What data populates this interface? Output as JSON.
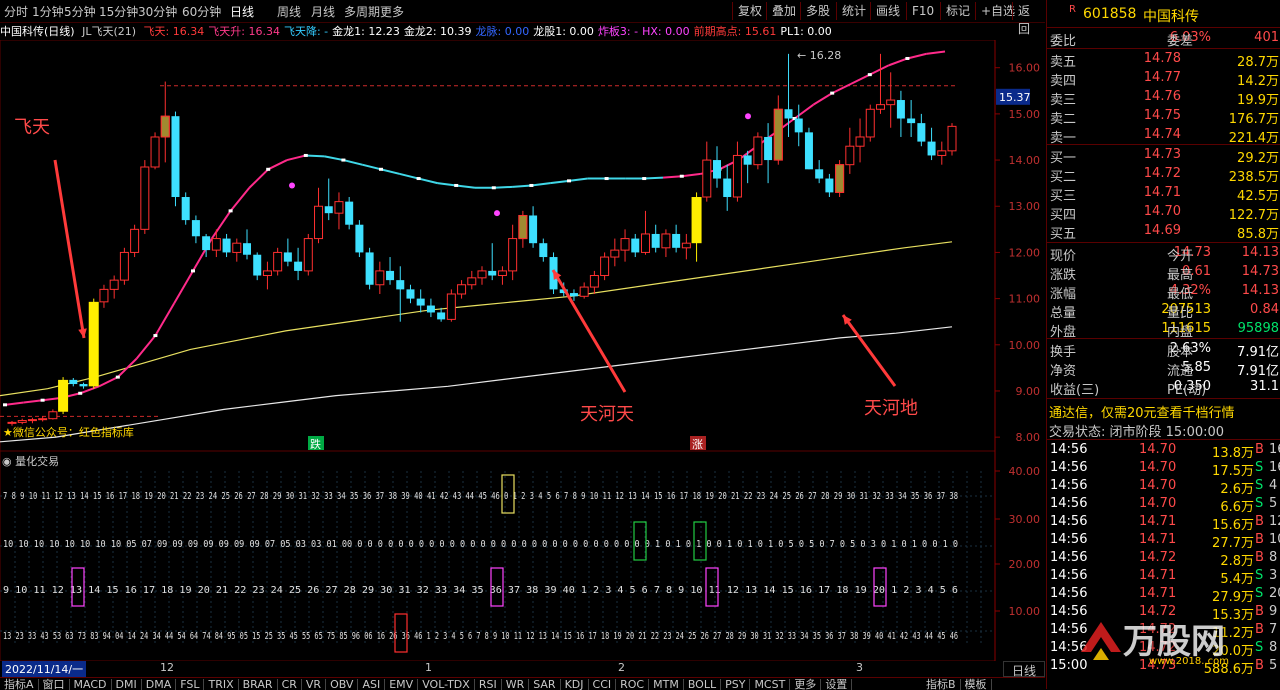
{
  "toolbar": {
    "periods": [
      "分时",
      "1分钟",
      "5分钟",
      "15分钟",
      "30分钟",
      "60分钟",
      "日线",
      "周线",
      "月线",
      "多周期",
      "更多"
    ],
    "active_period": "日线",
    "right_buttons": [
      "复权",
      "叠加",
      "多股",
      "统计",
      "画线",
      "F10",
      "标记",
      "+自选",
      "返回"
    ]
  },
  "infobar": {
    "stock": "中国科传(日线)",
    "indicator": "JL飞天(21)",
    "items": [
      {
        "label": "飞天:",
        "value": "16.34",
        "color": "#ff3a3a"
      },
      {
        "label": "飞天升:",
        "value": "16.34",
        "color": "#ff3a8a"
      },
      {
        "label": "飞天降:",
        "value": "-",
        "color": "#33ccff"
      },
      {
        "label": "金龙1:",
        "value": "12.23",
        "color": "#ffffff"
      },
      {
        "label": "金龙2:",
        "value": "10.39",
        "color": "#ffffff"
      },
      {
        "label": "龙脉:",
        "value": "0.00",
        "color": "#3366ff"
      },
      {
        "label": "龙股1:",
        "value": "0.00",
        "color": "#ffffff"
      },
      {
        "label": "炸板3:",
        "value": "-",
        "color": "#ff44ff"
      },
      {
        "label": "HX:",
        "value": "0.00",
        "color": "#ff44ff"
      },
      {
        "label": "前期高点:",
        "value": "15.61",
        "color": "#ff3a3a"
      },
      {
        "label": "PL1:",
        "value": "0.00",
        "color": "#ffffff"
      }
    ]
  },
  "chart_data": {
    "type": "candlestick",
    "ylim": [
      7.7,
      16.6
    ],
    "yticks": [
      "16.00",
      "15.00",
      "14.00",
      "13.00",
      "12.00",
      "11.00",
      "10.00",
      "9.00",
      "8.00"
    ],
    "current_price_label": "15.37",
    "peak_label": "16.28",
    "candles": [
      [
        8.3,
        8.35,
        8.25,
        8.32
      ],
      [
        8.32,
        8.4,
        8.28,
        8.36
      ],
      [
        8.36,
        8.42,
        8.3,
        8.38
      ],
      [
        8.38,
        8.45,
        8.34,
        8.4
      ],
      [
        8.4,
        8.6,
        8.38,
        8.55
      ],
      [
        8.55,
        9.3,
        8.5,
        9.24
      ],
      [
        9.24,
        9.28,
        9.1,
        9.15
      ],
      [
        9.15,
        9.18,
        9.05,
        9.1
      ],
      [
        9.1,
        11.0,
        9.05,
        10.93
      ],
      [
        10.93,
        11.3,
        10.8,
        11.2
      ],
      [
        11.2,
        11.5,
        11.0,
        11.4
      ],
      [
        11.4,
        12.1,
        11.3,
        12.0
      ],
      [
        12.0,
        12.6,
        11.9,
        12.5
      ],
      [
        12.5,
        14.0,
        12.4,
        13.85
      ],
      [
        13.85,
        14.6,
        13.8,
        14.5
      ],
      [
        14.5,
        15.7,
        13.95,
        14.95
      ],
      [
        14.95,
        15.05,
        13.0,
        13.2
      ],
      [
        13.2,
        13.3,
        12.6,
        12.7
      ],
      [
        12.7,
        12.8,
        12.2,
        12.35
      ],
      [
        12.35,
        12.4,
        11.9,
        12.05
      ],
      [
        12.05,
        12.5,
        11.9,
        12.3
      ],
      [
        12.3,
        12.4,
        11.9,
        12.0
      ],
      [
        12.0,
        12.3,
        11.8,
        12.2
      ],
      [
        12.2,
        12.5,
        11.85,
        11.95
      ],
      [
        11.95,
        12.0,
        11.4,
        11.5
      ],
      [
        11.5,
        11.8,
        11.2,
        11.6
      ],
      [
        11.6,
        12.1,
        11.5,
        12.0
      ],
      [
        12.0,
        12.3,
        11.7,
        11.8
      ],
      [
        11.8,
        12.1,
        11.4,
        11.6
      ],
      [
        11.6,
        12.4,
        11.5,
        12.3
      ],
      [
        12.3,
        13.4,
        12.2,
        13.0
      ],
      [
        13.0,
        13.6,
        12.7,
        12.85
      ],
      [
        12.85,
        13.3,
        12.5,
        13.1
      ],
      [
        13.1,
        13.2,
        12.5,
        12.6
      ],
      [
        12.6,
        12.7,
        11.9,
        12.0
      ],
      [
        12.0,
        12.1,
        11.2,
        11.3
      ],
      [
        11.3,
        11.8,
        11.1,
        11.6
      ],
      [
        11.6,
        11.9,
        11.3,
        11.4
      ],
      [
        11.4,
        11.7,
        10.5,
        11.2
      ],
      [
        11.2,
        11.3,
        10.9,
        11.0
      ],
      [
        11.0,
        11.2,
        10.7,
        10.85
      ],
      [
        10.85,
        11.0,
        10.6,
        10.7
      ],
      [
        10.7,
        10.8,
        10.5,
        10.55
      ],
      [
        10.55,
        11.2,
        10.5,
        11.1
      ],
      [
        11.1,
        11.4,
        11.0,
        11.3
      ],
      [
        11.3,
        11.6,
        11.2,
        11.45
      ],
      [
        11.45,
        11.7,
        11.3,
        11.6
      ],
      [
        11.6,
        12.2,
        11.4,
        11.5
      ],
      [
        11.5,
        11.7,
        11.3,
        11.6
      ],
      [
        11.6,
        12.6,
        11.4,
        12.3
      ],
      [
        12.3,
        12.9,
        12.1,
        12.8
      ],
      [
        12.8,
        13.0,
        12.1,
        12.2
      ],
      [
        12.2,
        12.3,
        11.8,
        11.9
      ],
      [
        11.9,
        12.0,
        11.1,
        11.2
      ],
      [
        11.2,
        11.35,
        11.05,
        11.12
      ],
      [
        11.12,
        11.2,
        10.95,
        11.05
      ],
      [
        11.05,
        11.35,
        11.0,
        11.25
      ],
      [
        11.25,
        11.6,
        11.1,
        11.5
      ],
      [
        11.5,
        12.0,
        11.4,
        11.9
      ],
      [
        11.9,
        12.3,
        11.7,
        12.05
      ],
      [
        12.05,
        12.5,
        11.8,
        12.3
      ],
      [
        12.3,
        12.4,
        11.9,
        12.0
      ],
      [
        12.0,
        12.9,
        11.95,
        12.4
      ],
      [
        12.4,
        12.6,
        12.0,
        12.1
      ],
      [
        12.1,
        12.5,
        11.9,
        12.4
      ],
      [
        12.4,
        12.6,
        12.0,
        12.1
      ],
      [
        12.1,
        12.4,
        11.85,
        12.2
      ],
      [
        12.2,
        13.3,
        11.8,
        13.2
      ],
      [
        13.2,
        14.4,
        13.1,
        14.0
      ],
      [
        14.0,
        14.3,
        13.4,
        13.6
      ],
      [
        13.6,
        13.9,
        12.9,
        13.2
      ],
      [
        13.2,
        14.4,
        13.1,
        14.1
      ],
      [
        14.1,
        14.2,
        13.5,
        13.9
      ],
      [
        13.9,
        14.6,
        13.8,
        14.5
      ],
      [
        14.5,
        14.8,
        13.5,
        14.0
      ],
      [
        14.0,
        15.4,
        13.9,
        15.1
      ],
      [
        15.1,
        16.3,
        14.5,
        14.9
      ],
      [
        14.9,
        15.2,
        14.3,
        14.6
      ],
      [
        14.6,
        14.7,
        13.8,
        13.8
      ],
      [
        13.8,
        14.0,
        13.5,
        13.6
      ],
      [
        13.6,
        13.7,
        13.2,
        13.3
      ],
      [
        13.3,
        14.0,
        13.2,
        13.9
      ],
      [
        13.9,
        14.7,
        13.7,
        14.3
      ],
      [
        14.3,
        14.9,
        13.95,
        14.5
      ],
      [
        14.5,
        15.2,
        14.4,
        15.1
      ],
      [
        15.1,
        16.3,
        15.0,
        15.2
      ],
      [
        15.2,
        15.9,
        14.7,
        15.3
      ],
      [
        15.3,
        15.5,
        14.5,
        14.9
      ],
      [
        14.9,
        15.3,
        14.5,
        14.8
      ],
      [
        14.8,
        15.0,
        14.3,
        14.4
      ],
      [
        14.4,
        14.7,
        14.0,
        14.1
      ],
      [
        14.1,
        14.4,
        13.9,
        14.2
      ],
      [
        14.2,
        14.8,
        14.1,
        14.73
      ]
    ],
    "ma_curve": [
      8.7,
      8.75,
      8.8,
      8.85,
      8.95,
      9.1,
      9.3,
      9.7,
      10.2,
      10.9,
      11.6,
      12.3,
      12.9,
      13.4,
      13.8,
      14.0,
      14.1,
      14.08,
      14.0,
      13.9,
      13.8,
      13.7,
      13.6,
      13.5,
      13.45,
      13.4,
      13.4,
      13.42,
      13.45,
      13.5,
      13.55,
      13.6,
      13.6,
      13.6,
      13.6,
      13.62,
      13.65,
      13.7,
      13.8,
      14.0,
      14.3,
      14.6,
      14.9,
      15.2,
      15.45,
      15.65,
      15.85,
      16.05,
      16.2,
      16.3,
      16.35
    ],
    "line_yellow": [
      8.9,
      9.05,
      9.3,
      9.6,
      9.9,
      10.1,
      10.3,
      10.45,
      10.6,
      10.75,
      10.85,
      10.95,
      11.05,
      11.2,
      11.35,
      11.5,
      11.65,
      11.8,
      11.95,
      12.1,
      12.23
    ],
    "line_white": [
      7.9,
      8.0,
      8.2,
      8.4,
      8.6,
      8.75,
      8.9,
      9.0,
      9.1,
      9.25,
      9.4,
      9.55,
      9.7,
      9.85,
      10.0,
      10.15,
      10.25,
      10.39
    ],
    "annotations": [
      "飞天",
      "天河天",
      "天河地"
    ],
    "side_markers": [
      "跌",
      "涨"
    ],
    "bottom_note": "★微信公众号：红色指标库"
  },
  "subchart": {
    "title": "量化交易",
    "yticks": [
      "40.00",
      "30.00",
      "20.00",
      "10.00"
    ],
    "rows": [
      "7 8 9 10 11 12 13 14 15 16 17 18 19 20 21 22 23 24 25 26 27 28 29 30 31 32 33 34 35 36 37 38 39 40 41 42 43 44 45 46 0 1 2 3 4 5 6 7 8 9 10 11 12 13 14 15 16 17 18 19 20 21 22 23 24 25 26 27 28 29 30 31 32 33 34 35 36 37 38",
      "10 10 10 10 10 10 10 10 05 07 09 09 09 09 09 09 09 07 05 03 03 01 00 0 0 0 0 0 0 0 0 0 0 0 0 0 0 0 0 0 0 0 0 0 0 0 0 0 0 0 0 0 1 0 1 0 1 0 0 1 0 1 0 1 0 5 0 5 0 7 0 5 0 3 0 1 0 1 0 0 1 0",
      "9 10 11 12 13 14 15 16 17 18 19 20 21 22 23 24 25 26 27 28 29 30 31 32 33 34 35 36 37 38 39 40 1 2 3 4 5 6 7 8 9 10 11 12 13 14 15 16 17 18 19 20 1 2 3 4 5 6",
      "13 23 33 43 53 63 73 83 94 04 14 24 34 44 54 64 74 84 95 05 15 25 35 45 55 65 75 85 96 06 16 26 36 46 1 2 3 4 5 6 7 8 9 10 11 12 13 14 15 16 17 18 19 20 21 22 23 24 25 26 27 28 29 30 31 32 33 34 35 36 37 38 39 40 41 42 43 44 45 46"
    ]
  },
  "daterow": {
    "start": "2022/11/14/一",
    "months": [
      "12",
      "1",
      "2",
      "3"
    ]
  },
  "bottom_tabs": [
    "指标A",
    "窗口",
    "MACD",
    "DMI",
    "DMA",
    "FSL",
    "TRIX",
    "BRAR",
    "CR",
    "VR",
    "OBV",
    "ASI",
    "EMV",
    "VOL-TDX",
    "RSI",
    "WR",
    "SAR",
    "KDJ",
    "CCI",
    "ROC",
    "MTM",
    "BOLL",
    "PSY",
    "MCST",
    "更多",
    "设置"
  ],
  "bottom_right": [
    "指标B",
    "模板"
  ],
  "periodbtn": "日线",
  "panel": {
    "code": "601858",
    "name": "中国科传",
    "webi_label": "委比",
    "webi": "6.03%",
    "weicha_label": "委差",
    "weicha": "401",
    "sells": [
      {
        "label": "卖五",
        "price": "14.78",
        "vol": "28.7万"
      },
      {
        "label": "卖四",
        "price": "14.77",
        "vol": "14.2万"
      },
      {
        "label": "卖三",
        "price": "14.76",
        "vol": "19.9万"
      },
      {
        "label": "卖二",
        "price": "14.75",
        "vol": "176.7万"
      },
      {
        "label": "卖一",
        "price": "14.74",
        "vol": "221.4万"
      }
    ],
    "buys": [
      {
        "label": "买一",
        "price": "14.73",
        "vol": "29.2万"
      },
      {
        "label": "买二",
        "price": "14.72",
        "vol": "238.5万"
      },
      {
        "label": "买三",
        "price": "14.71",
        "vol": "42.5万"
      },
      {
        "label": "买四",
        "price": "14.70",
        "vol": "122.7万"
      },
      {
        "label": "买五",
        "price": "14.69",
        "vol": "85.8万"
      }
    ],
    "stats": [
      {
        "l1": "现价",
        "v1": "14.73",
        "c1": "red",
        "l2": "今开",
        "v2": "14.13",
        "c2": "red"
      },
      {
        "l1": "涨跌",
        "v1": "0.61",
        "c1": "red",
        "l2": "最高",
        "v2": "14.73",
        "c2": "red"
      },
      {
        "l1": "涨幅",
        "v1": "4.32%",
        "c1": "red",
        "l2": "最低",
        "v2": "14.13",
        "c2": "red"
      },
      {
        "l1": "总量",
        "v1": "207513",
        "c1": "yellow",
        "l2": "量比",
        "v2": "0.84",
        "c2": "red"
      },
      {
        "l1": "外盘",
        "v1": "111615",
        "c1": "yellow",
        "l2": "内盘",
        "v2": "95898",
        "c2": "green"
      }
    ],
    "stats2": [
      {
        "l1": "换手",
        "v1": "2.63%",
        "c1": "white",
        "l2": "股本",
        "v2": "7.91亿",
        "c2": "white"
      },
      {
        "l1": "净资",
        "v1": "5.85",
        "c1": "white",
        "l2": "流通",
        "v2": "7.91亿",
        "c2": "white"
      },
      {
        "l1": "收益(三)",
        "v1": "0.350",
        "c1": "white",
        "l2": "PE(动)",
        "v2": "31.1",
        "c2": "white"
      }
    ],
    "promo": "通达信，仅需20元查看千档行情",
    "status": "交易状态: 闭市阶段 15:00:00",
    "ticks": [
      {
        "t": "14:56",
        "p": "14.70",
        "q": "13.8万",
        "s": "B",
        "n": "16"
      },
      {
        "t": "14:56",
        "p": "14.70",
        "q": "17.5万",
        "s": "S",
        "n": "16"
      },
      {
        "t": "14:56",
        "p": "14.70",
        "q": "2.6万",
        "s": "S",
        "n": "4"
      },
      {
        "t": "14:56",
        "p": "14.70",
        "q": "6.6万",
        "s": "S",
        "n": "5"
      },
      {
        "t": "14:56",
        "p": "14.71",
        "q": "15.6万",
        "s": "B",
        "n": "12"
      },
      {
        "t": "14:56",
        "p": "14.71",
        "q": "27.7万",
        "s": "B",
        "n": "10"
      },
      {
        "t": "14:56",
        "p": "14.72",
        "q": "2.8万",
        "s": "B",
        "n": "8"
      },
      {
        "t": "14:56",
        "p": "14.71",
        "q": "5.4万",
        "s": "S",
        "n": "3"
      },
      {
        "t": "14:56",
        "p": "14.71",
        "q": "27.9万",
        "s": "S",
        "n": "20"
      },
      {
        "t": "14:56",
        "p": "14.72",
        "q": "15.3万",
        "s": "B",
        "n": "9"
      },
      {
        "t": "14:56",
        "p": "14.72",
        "q": "11.2万",
        "s": "B",
        "n": "7"
      },
      {
        "t": "14:56",
        "p": "14.72",
        "q": "20.0万",
        "s": "S",
        "n": "8"
      },
      {
        "t": "15:00",
        "p": "14.73",
        "q": "588.6万",
        "s": "B",
        "n": "5"
      }
    ],
    "watermark": "万股网",
    "watermark_url": "www.2018..com"
  }
}
